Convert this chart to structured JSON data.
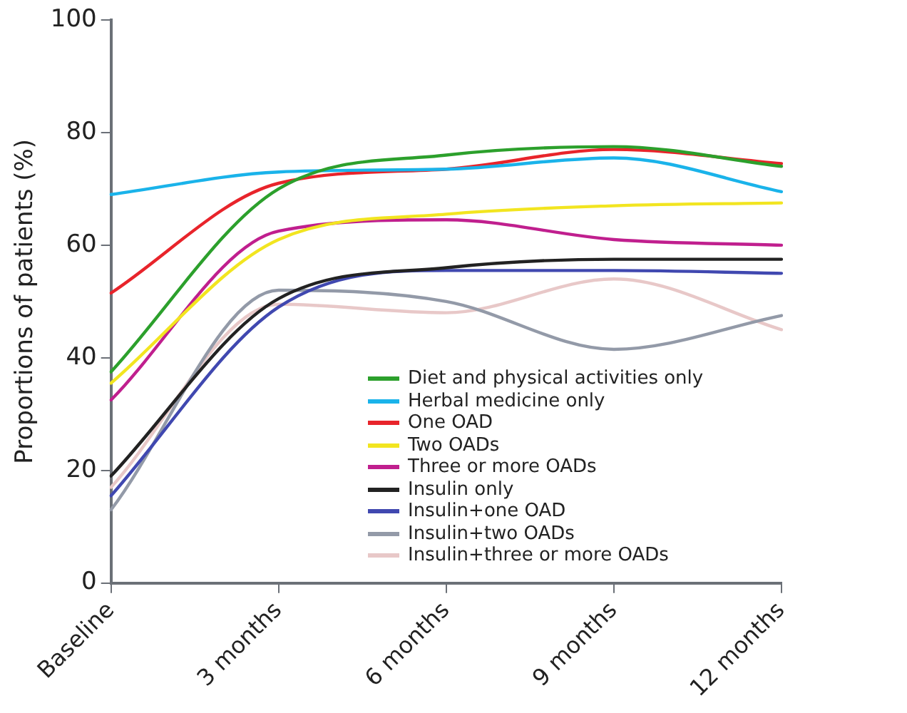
{
  "chart_data": {
    "type": "line",
    "ylabel": "Proportions of patients (%)",
    "categories": [
      "Baseline",
      "3 months",
      "6 months",
      "9 months",
      "12 months"
    ],
    "ylim": [
      0,
      100
    ],
    "yticks": [
      0,
      20,
      40,
      60,
      80,
      100
    ],
    "grid": false,
    "legend": "bottom",
    "marker": "none",
    "line_style": "solid",
    "series": [
      {
        "name": "Diet and physical activities only",
        "color": "#2ca02c",
        "values": [
          37.5,
          70,
          76,
          77.5,
          74
        ]
      },
      {
        "name": "Herbal medicine only",
        "color": "#1ab3ea",
        "values": [
          69,
          73,
          73.5,
          75.5,
          69.5
        ]
      },
      {
        "name": "One OAD",
        "color": "#e8242b",
        "values": [
          51.5,
          71,
          73.5,
          77,
          74.5
        ]
      },
      {
        "name": "Two OADs",
        "color": "#f2e520",
        "values": [
          35.5,
          61,
          65.5,
          67,
          67.5
        ]
      },
      {
        "name": "Three or more OADs",
        "color": "#c01f8e",
        "values": [
          32.5,
          62.5,
          64.5,
          61,
          60
        ]
      },
      {
        "name": "Insulin only",
        "color": "#222222",
        "values": [
          19,
          50.5,
          56,
          57.5,
          57.5
        ]
      },
      {
        "name": "Insulin+one OAD",
        "color": "#4048b0",
        "values": [
          15.5,
          49,
          55.5,
          55.5,
          55
        ]
      },
      {
        "name": "Insulin+two OADs",
        "color": "#939aa8",
        "values": [
          13,
          52,
          50,
          41.5,
          47.5
        ]
      },
      {
        "name": "Insulin+three or more OADs",
        "color": "#e8c8c8",
        "values": [
          17,
          49.5,
          48,
          54,
          45
        ]
      }
    ]
  }
}
